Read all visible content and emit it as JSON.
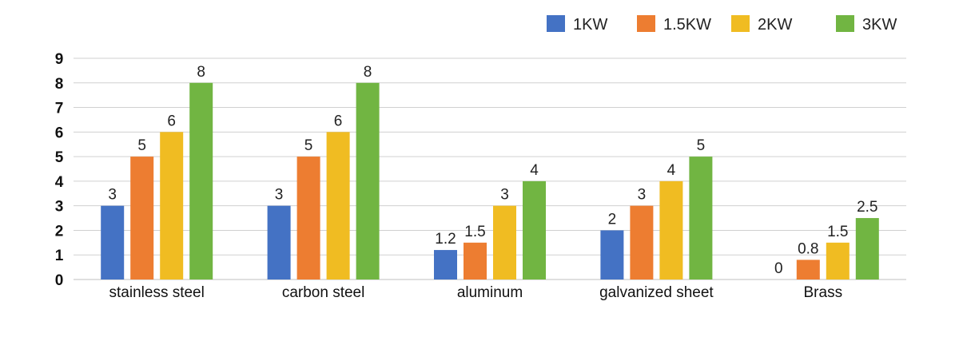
{
  "chart_data": {
    "type": "bar",
    "title": "",
    "xlabel": "",
    "ylabel": "",
    "ylim": [
      0,
      9
    ],
    "yticks": [
      "0",
      "1",
      "2",
      "3",
      "4",
      "5",
      "6",
      "7",
      "8",
      "9"
    ],
    "grid": true,
    "legend_position": "top-right",
    "categories": [
      "stainless steel",
      "carbon steel",
      "aluminum",
      "galvanized sheet",
      "Brass"
    ],
    "series": [
      {
        "name": "1KW",
        "color": "#4472C4",
        "values": [
          3,
          3,
          1.2,
          2,
          0
        ],
        "labels": [
          "3",
          "3",
          "1.2",
          "2",
          "0"
        ]
      },
      {
        "name": "1.5KW",
        "color": "#ED7D31",
        "values": [
          5,
          5,
          1.5,
          3,
          0.8
        ],
        "labels": [
          "5",
          "5",
          "1.5",
          "3",
          "0.8"
        ]
      },
      {
        "name": "2KW",
        "color": "#F0BC22",
        "values": [
          6,
          6,
          3,
          4,
          1.5
        ],
        "labels": [
          "6",
          "6",
          "3",
          "4",
          "1.5"
        ]
      },
      {
        "name": "3KW",
        "color": "#71B542",
        "values": [
          8,
          8,
          4,
          5,
          2.5
        ],
        "labels": [
          "8",
          "8",
          "4",
          "5",
          "2.5"
        ]
      }
    ]
  }
}
